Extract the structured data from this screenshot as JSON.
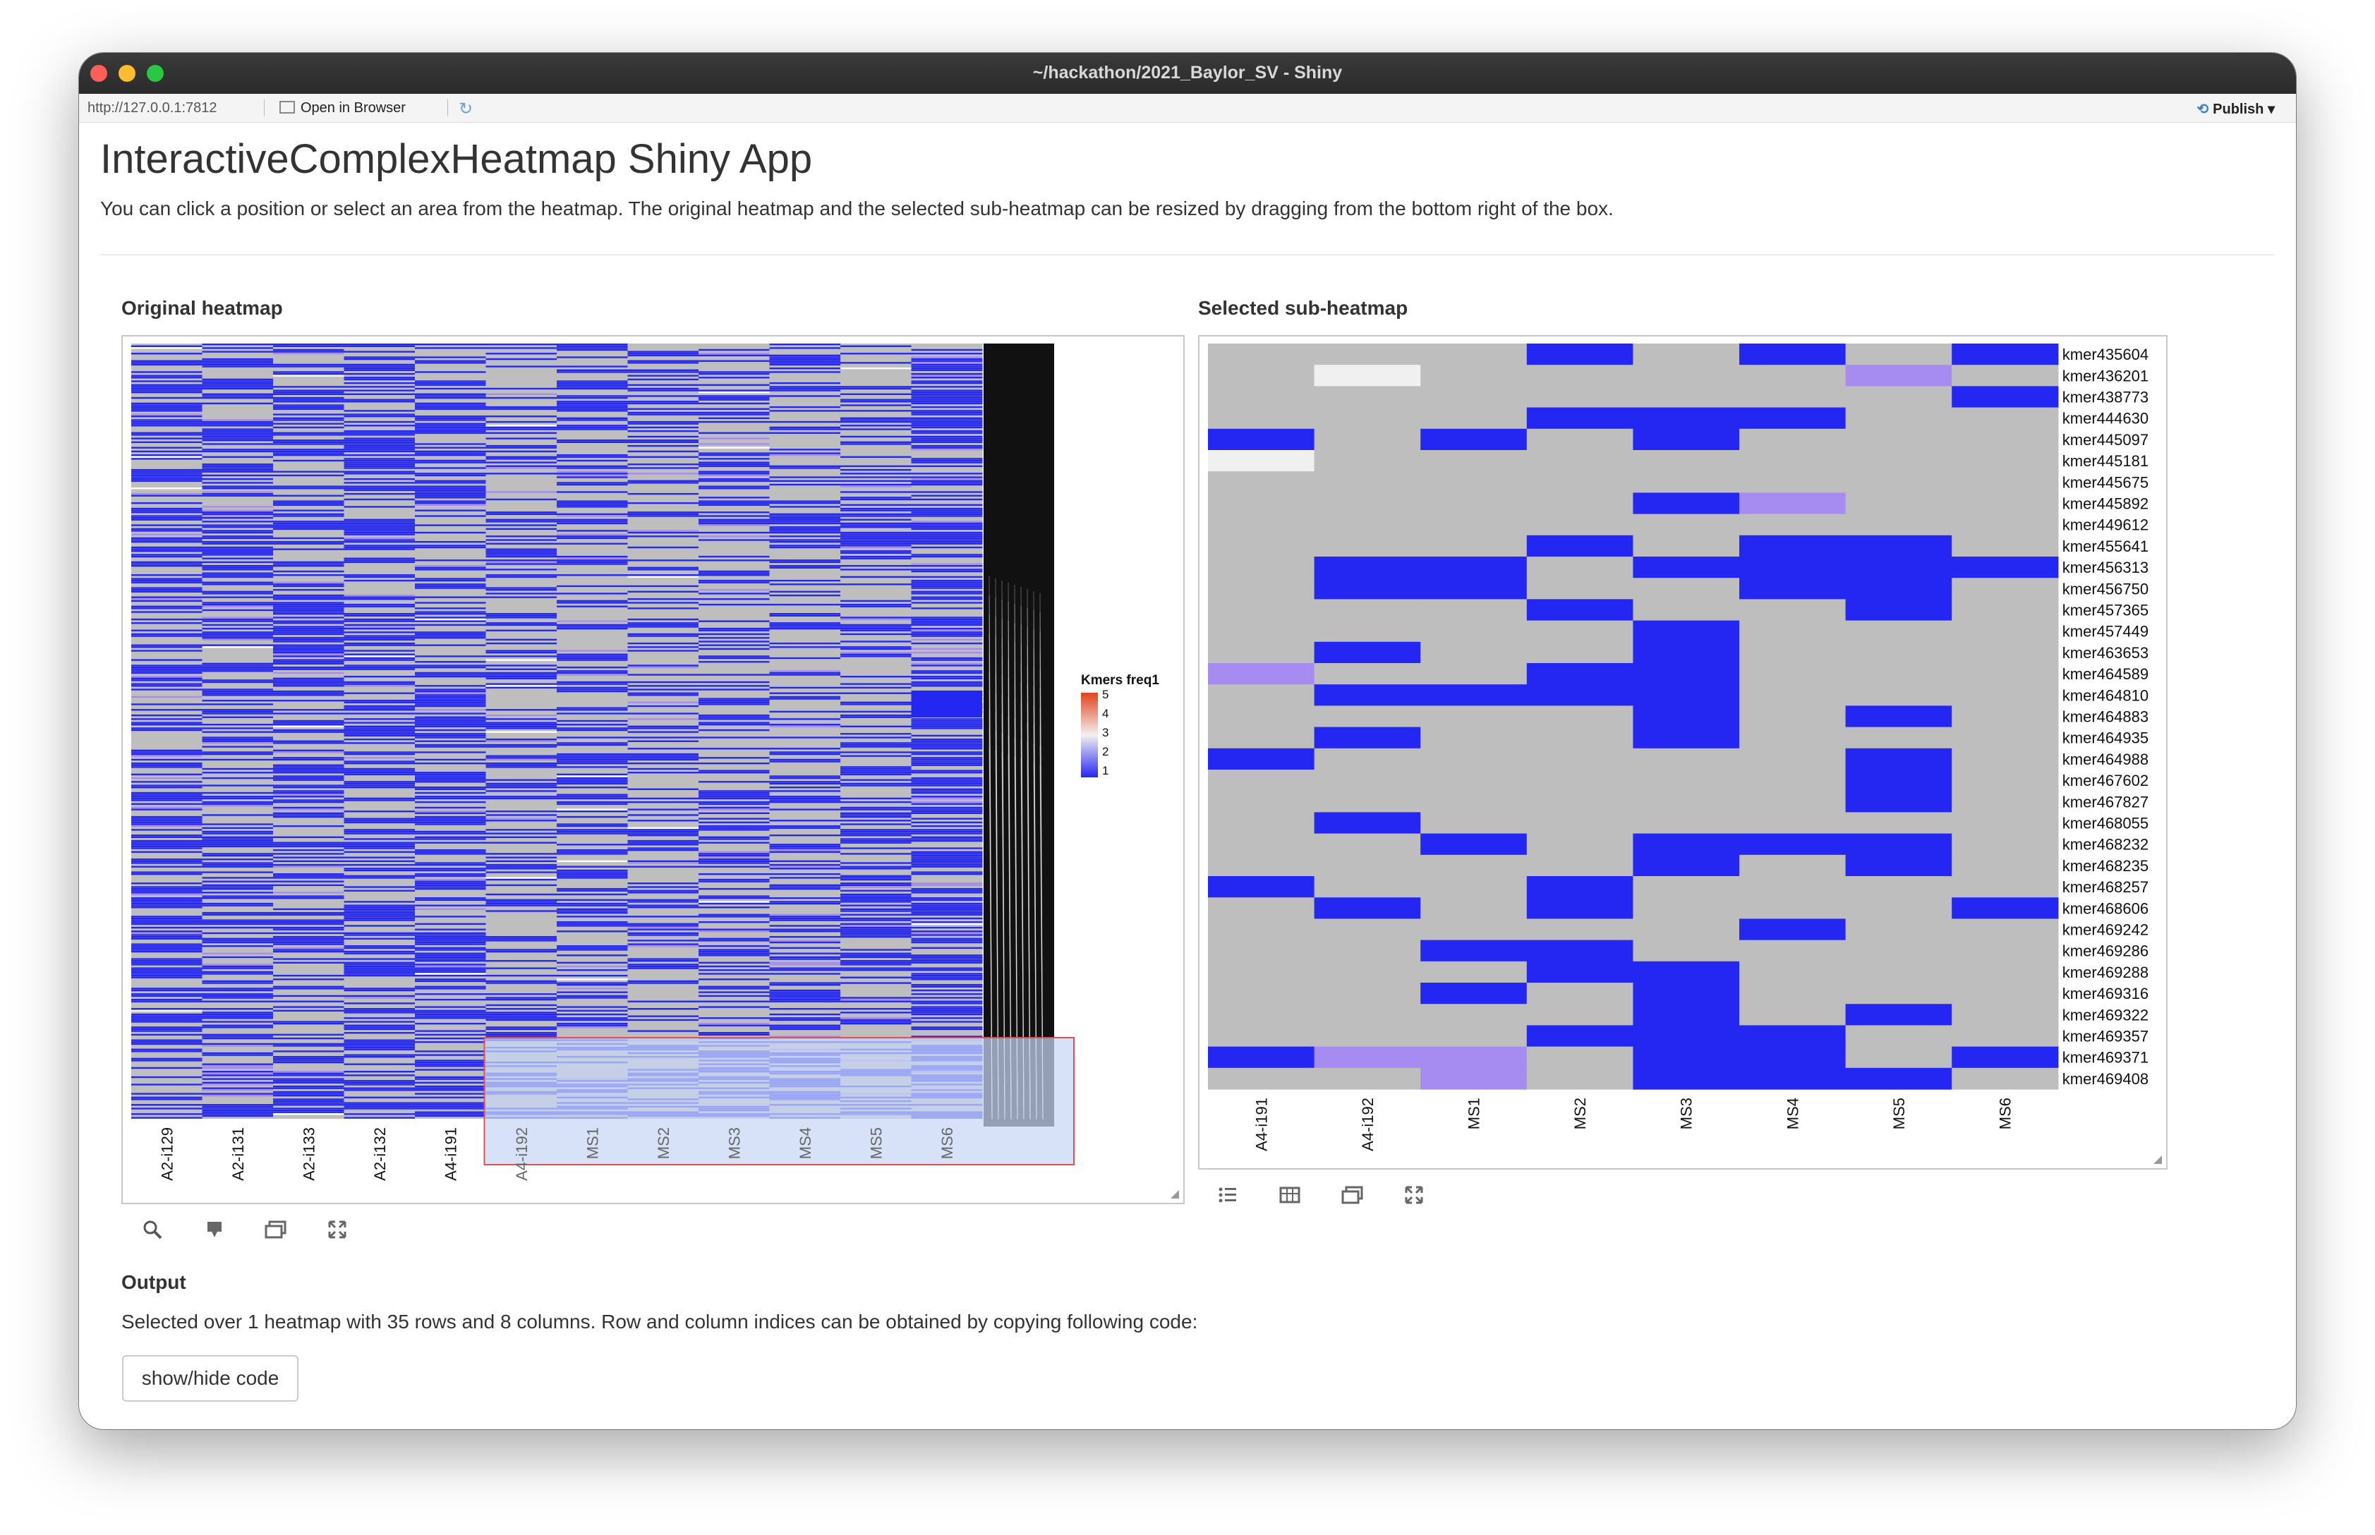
{
  "window": {
    "title": "~/hackathon/2021_Baylor_SV - Shiny"
  },
  "toolbar": {
    "url": "http://127.0.0.1:7812",
    "open_browser": "Open in Browser",
    "publish": "Publish"
  },
  "page": {
    "title": "InteractiveComplexHeatmap Shiny App",
    "description": "You can click a position or select an area from the heatmap. The original heatmap and the selected sub-heatmap can be resized by dragging from the bottom right of the box."
  },
  "original": {
    "title": "Original heatmap",
    "columns": [
      "A2-i129",
      "A2-i131",
      "A2-i133",
      "A2-i132",
      "A4-i191",
      "A4-i192",
      "MS1",
      "MS2",
      "MS3",
      "MS4",
      "MS5",
      "MS6"
    ],
    "legend": {
      "title": "Kmers freq1",
      "ticks": [
        "5",
        "4",
        "3",
        "2",
        "1"
      ]
    }
  },
  "sub": {
    "title": "Selected sub-heatmap",
    "columns": [
      "A4-i191",
      "A4-i192",
      "MS1",
      "MS2",
      "MS3",
      "MS4",
      "MS5",
      "MS6"
    ],
    "rows": [
      "kmer435604",
      "kmer436201",
      "kmer438773",
      "kmer444630",
      "kmer445097",
      "kmer445181",
      "kmer445675",
      "kmer445892",
      "kmer449612",
      "kmer455641",
      "kmer456313",
      "kmer456750",
      "kmer457365",
      "kmer457449",
      "kmer463653",
      "kmer464589",
      "kmer464810",
      "kmer464883",
      "kmer464935",
      "kmer464988",
      "kmer467602",
      "kmer467827",
      "kmer468055",
      "kmer468232",
      "kmer468235",
      "kmer468257",
      "kmer468606",
      "kmer469242",
      "kmer469286",
      "kmer469288",
      "kmer469316",
      "kmer469322",
      "kmer469357",
      "kmer469371",
      "kmer469408"
    ],
    "cells": [
      "000101010",
      "0N0000200",
      "000000010",
      "000111000",
      "1010100010",
      "N00000000",
      "000000001",
      "000012000",
      "000000000",
      "000101101",
      "011011110",
      "011001100",
      "000100100",
      "000010000",
      "010010001",
      "200110000",
      "011110000",
      "000010101",
      "010010001",
      "100000100",
      "000000101",
      "000000100",
      "010000000",
      "001011100",
      "000010100",
      "100100000",
      "010100010",
      "000001002",
      "001100000",
      "000110001",
      "001010000",
      "000010101",
      "000111001",
      "122011010",
      "002011102"
    ]
  },
  "colors": {
    "blue": "#2426f2",
    "gray": "#bebebe",
    "light_purple": "#a68cf0",
    "white_cell": "#f0f0f0",
    "selection_fill": "#c7d7f5",
    "selection_border": "#e05050",
    "legend_high": "#e2421c"
  },
  "output": {
    "title": "Output",
    "text": "Selected over 1 heatmap with 35 rows and 8 columns. Row and column indices can be obtained by copying following code:",
    "button": "show/hide code"
  }
}
